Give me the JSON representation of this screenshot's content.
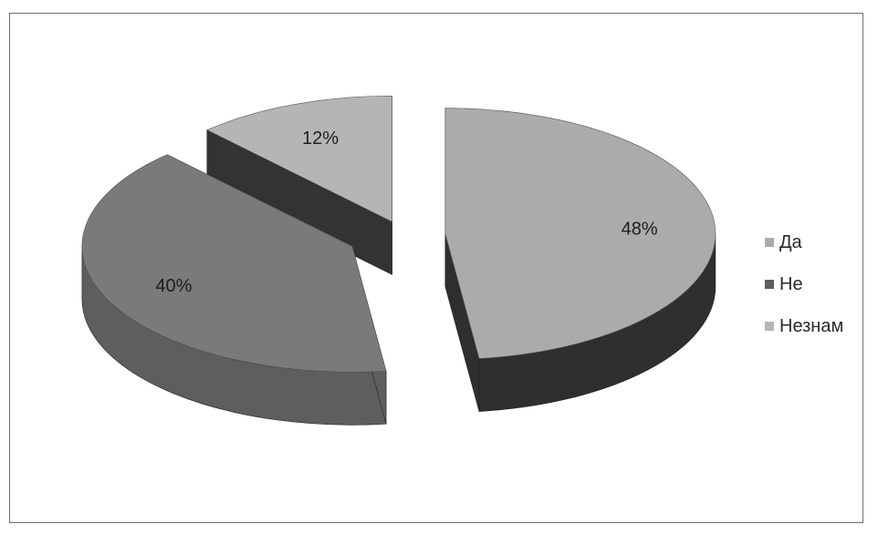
{
  "chart_data": {
    "type": "pie",
    "categories": [
      "Да",
      "Не",
      "Незнам"
    ],
    "values": [
      48,
      40,
      12
    ],
    "data_labels": [
      "48%",
      "40%",
      "12%"
    ],
    "exploded": true,
    "three_d": true,
    "legend_position": "right",
    "colors": {
      "Да_top": "#ababab",
      "Да_side": "#2f2f2f",
      "Не_top": "#7a7a7a",
      "Не_side": "#5e5e5e",
      "Незнам_top": "#b5b5b5",
      "Незнам_side": "#333333"
    }
  }
}
